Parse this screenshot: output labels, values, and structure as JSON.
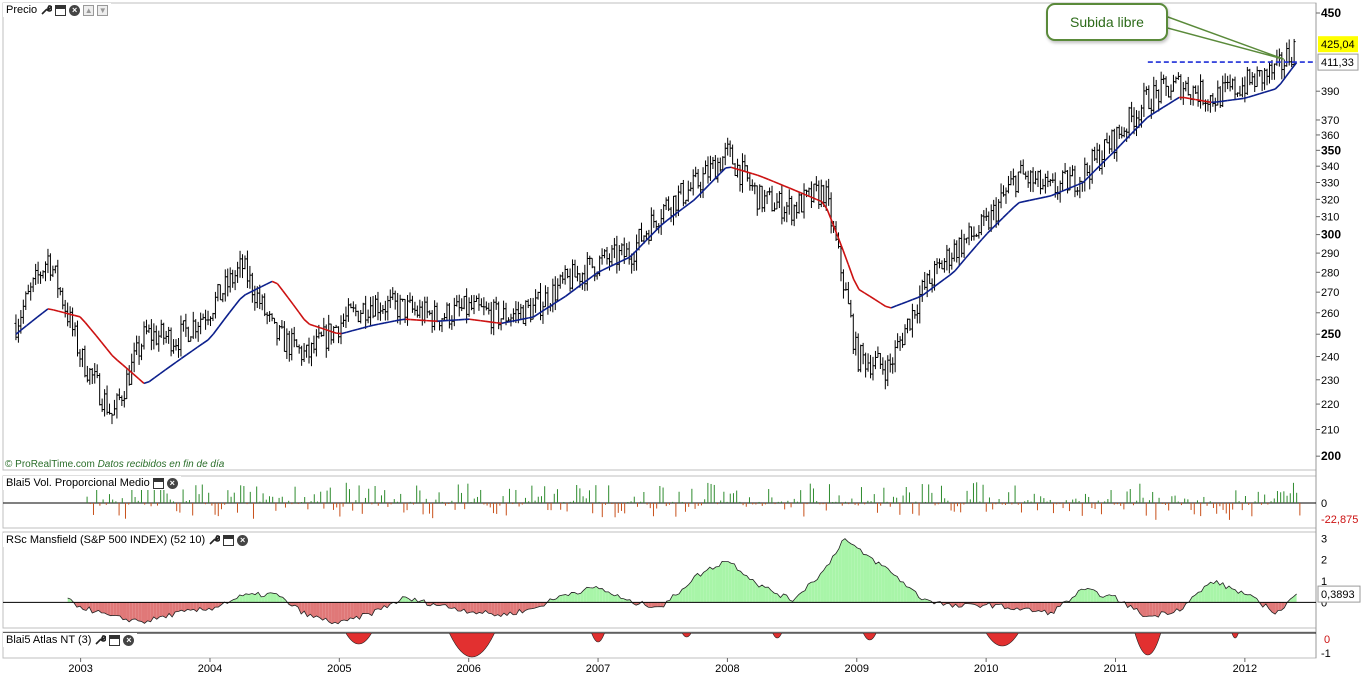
{
  "panes": {
    "price": {
      "title": "Precio"
    },
    "volume": {
      "title": "Blai5 Vol. Proporcional Medio"
    },
    "mansfield": {
      "title": "RSc Mansfield (S&P 500 INDEX) (52 10)"
    },
    "atlas": {
      "title": "Blai5 Atlas NT (3)"
    }
  },
  "icons": [
    "wrench-icon",
    "window-icon",
    "close-icon",
    "move-up-icon",
    "move-down-icon"
  ],
  "footnote": {
    "brand": "© ProRealTime.com",
    "note": "Datos recibidos en fin de día"
  },
  "annotation": {
    "text": "Subida libre"
  },
  "colors": {
    "price_bar": "#000000",
    "ma_down": "#cc1111",
    "ma_up": "#0b1f8c",
    "breakout_line": "#1f2fd8",
    "last_price_bg": "#ffff00",
    "volume_up": "#2e8b2e",
    "volume_down": "#c8501a",
    "rs_positive_fill": "#a8f5a8",
    "rs_negative_fill": "#e07878",
    "atlas_fill": "#e23030"
  },
  "chart_data": [
    {
      "type": "bar",
      "name": "price",
      "x": [
        "2002.5",
        "2002.75",
        "2003.0",
        "2003.25",
        "2003.5",
        "2003.75",
        "2004.0",
        "2004.25",
        "2004.5",
        "2004.75",
        "2005.0",
        "2005.25",
        "2005.5",
        "2005.75",
        "2006.0",
        "2006.25",
        "2006.5",
        "2006.75",
        "2007.0",
        "2007.25",
        "2007.5",
        "2007.75",
        "2008.0",
        "2008.25",
        "2008.5",
        "2008.75",
        "2009.0",
        "2009.25",
        "2009.5",
        "2009.75",
        "2010.0",
        "2010.25",
        "2010.5",
        "2010.75",
        "2011.0",
        "2011.25",
        "2011.5",
        "2011.75",
        "2012.0",
        "2012.25",
        "2012.4"
      ],
      "values": [
        255,
        288,
        240,
        215,
        250,
        248,
        262,
        283,
        250,
        240,
        255,
        265,
        262,
        258,
        262,
        258,
        262,
        275,
        285,
        290,
        315,
        328,
        348,
        320,
        315,
        325,
        240,
        235,
        270,
        292,
        305,
        335,
        325,
        335,
        358,
        385,
        395,
        385,
        395,
        405,
        425
      ],
      "ylim": [
        195,
        450
      ],
      "yticks": [
        200,
        210,
        220,
        230,
        240,
        250,
        260,
        270,
        280,
        290,
        300,
        310,
        320,
        330,
        340,
        350,
        360,
        370,
        390,
        450
      ],
      "last_value": "425,04",
      "breakout_level": "411,33",
      "moving_average": [
        250,
        262,
        258,
        240,
        228,
        238,
        248,
        268,
        276,
        255,
        250,
        254,
        257,
        256,
        257,
        255,
        258,
        268,
        280,
        288,
        306,
        320,
        340,
        334,
        326,
        318,
        272,
        262,
        268,
        280,
        300,
        318,
        322,
        330,
        350,
        372,
        386,
        382,
        385,
        392,
        411
      ]
    },
    {
      "type": "bar",
      "name": "volume",
      "yticks": [
        "0"
      ],
      "last_value": "-22,875"
    },
    {
      "type": "area",
      "name": "mansfield",
      "x": [
        "2002.9",
        "2003.0",
        "2003.25",
        "2003.5",
        "2003.75",
        "2004.0",
        "2004.25",
        "2004.5",
        "2004.75",
        "2005.0",
        "2005.25",
        "2005.5",
        "2005.75",
        "2006.0",
        "2006.25",
        "2006.5",
        "2006.75",
        "2007.0",
        "2007.25",
        "2007.5",
        "2007.75",
        "2008.0",
        "2008.25",
        "2008.5",
        "2008.75",
        "2008.9",
        "2009.0",
        "2009.25",
        "2009.5",
        "2009.75",
        "2010.0",
        "2010.25",
        "2010.5",
        "2010.75",
        "2011.0",
        "2011.25",
        "2011.5",
        "2011.75",
        "2012.0",
        "2012.25",
        "2012.4"
      ],
      "values": [
        0.1,
        -0.2,
        -0.7,
        -0.9,
        -0.5,
        -0.3,
        0.3,
        0.4,
        -0.6,
        -1.0,
        -0.5,
        0.2,
        -0.1,
        -0.4,
        -0.6,
        -0.3,
        0.4,
        0.7,
        0.0,
        -0.2,
        1.2,
        2.0,
        0.8,
        0.1,
        1.5,
        3.0,
        2.5,
        1.5,
        0.2,
        -0.2,
        -0.1,
        -0.3,
        -0.5,
        0.6,
        0.2,
        -0.7,
        -0.3,
        1.0,
        0.4,
        -0.5,
        0.3893
      ],
      "ylim": [
        -1.2,
        3.3
      ],
      "yticks": [
        "3",
        "2",
        "1",
        "0"
      ],
      "last_value": "0,3893"
    },
    {
      "type": "area",
      "name": "atlas",
      "yticks": [
        "0",
        "-1"
      ]
    }
  ],
  "x_axis": {
    "labels": [
      "2003",
      "2004",
      "2005",
      "2006",
      "2007",
      "2008",
      "2009",
      "2010",
      "2011",
      "2012"
    ]
  }
}
